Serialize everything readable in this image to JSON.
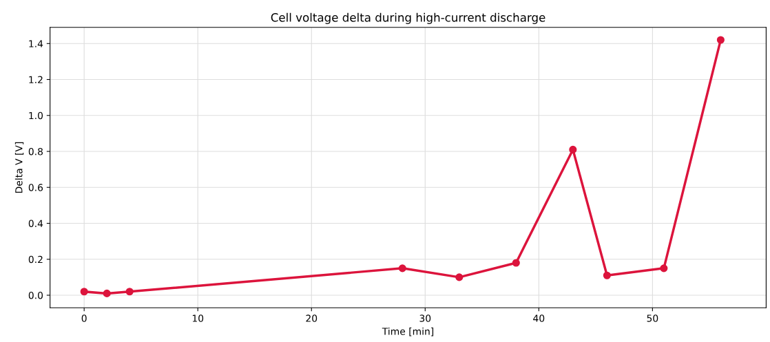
{
  "chart_data": {
    "type": "line",
    "title": "Cell voltage delta during high-current discharge",
    "xlabel": "Time [min]",
    "ylabel": "Delta V [V]",
    "x": [
      0,
      2,
      4,
      28,
      33,
      38,
      43,
      46,
      51,
      56
    ],
    "series": [
      {
        "color": "#dc143c",
        "values": [
          0.02,
          0.01,
          0.02,
          0.15,
          0.1,
          0.18,
          0.81,
          0.11,
          0.15,
          1.42
        ]
      }
    ],
    "xlim": [
      -3,
      60
    ],
    "xticks": [
      0,
      10,
      20,
      30,
      40,
      50
    ],
    "ylim": [
      -0.07,
      1.49
    ],
    "yticks": [
      {
        "value": 0,
        "label": "0.0"
      },
      {
        "value": 0.2,
        "label": "0.2"
      },
      {
        "value": 0.4,
        "label": "0.4"
      },
      {
        "value": 0.6,
        "label": "0.6"
      },
      {
        "value": 0.8,
        "label": "0.8"
      },
      {
        "value": 1.0,
        "label": "1.0"
      },
      {
        "value": 1.2,
        "label": "1.2"
      },
      {
        "value": 1.4,
        "label": "1.4"
      }
    ],
    "grid": true,
    "marker": "circle",
    "line_style": "solid"
  }
}
